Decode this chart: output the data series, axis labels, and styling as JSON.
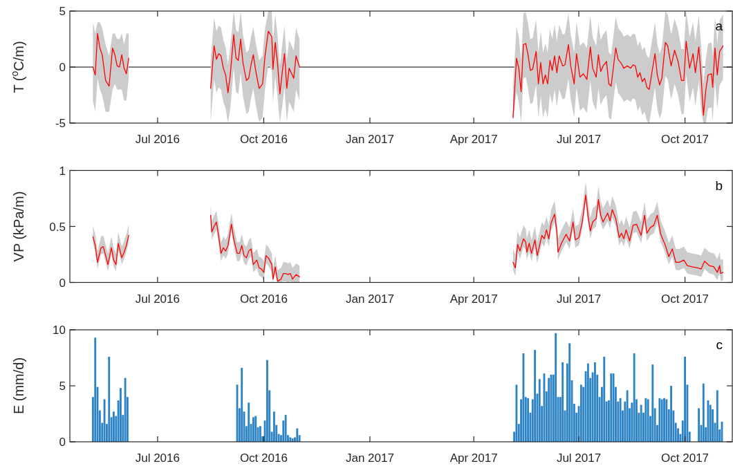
{
  "chart_data": [
    {
      "type": "line",
      "ylabel": "T ($^{o}$C/m)",
      "annotations": [
        "a"
      ],
      "xlim": [
        "2016-04-16",
        "2017-11-11"
      ],
      "xticks": [
        {
          "value": "2016-07-01",
          "label": "Jul 2016"
        },
        {
          "value": "2016-10-01",
          "label": "Oct 2016"
        },
        {
          "value": "2017-01-01",
          "label": "Jan 2017"
        },
        {
          "value": "2017-04-01",
          "label": "Apr 2017"
        },
        {
          "value": "2017-07-01",
          "label": "Jul 2017"
        },
        {
          "value": "2017-10-01",
          "label": "Oct 2017"
        }
      ],
      "ylim": [
        -5,
        5
      ],
      "yticks": [
        -5,
        0,
        5
      ],
      "ref_lines": [
        {
          "axis": "y",
          "value": 0,
          "color": "#000000"
        }
      ],
      "series": [
        {
          "color": "#ff0000",
          "x": [
            "2016-05-06",
            "2016-05-08",
            "2016-05-10",
            "2016-05-12",
            "2016-05-14",
            "2016-05-17",
            "2016-05-20",
            "2016-05-23",
            "2016-05-25",
            "2016-05-27",
            "2016-05-29",
            "2016-05-31",
            "2016-06-02",
            "2016-06-04",
            "2016-06-06",
            "2016-07-15",
            "2016-08-16",
            "2016-08-19",
            "2016-08-21",
            "2016-08-23",
            "2016-08-25",
            "2016-08-27",
            "2016-08-29",
            "2016-08-31",
            "2016-09-02",
            "2016-09-05",
            "2016-09-07",
            "2016-09-09",
            "2016-09-11",
            "2016-09-13",
            "2016-09-16",
            "2016-09-18",
            "2016-09-20",
            "2016-09-22",
            "2016-09-24",
            "2016-09-27",
            "2016-09-30",
            "2016-10-02",
            "2016-10-05",
            "2016-10-08",
            "2016-10-09",
            "2016-10-11",
            "2016-10-13",
            "2016-10-15",
            "2016-10-17",
            "2016-10-19",
            "2016-10-21",
            "2016-10-23",
            "2016-10-27",
            "2016-10-29",
            "2016-11-01",
            "2017-01-01",
            "2017-05-05",
            "2017-05-08",
            "2017-05-10",
            "2017-05-12",
            "2017-05-14",
            "2017-05-16",
            "2017-05-18",
            "2017-05-20",
            "2017-05-22",
            "2017-05-25",
            "2017-05-27",
            "2017-05-29",
            "2017-05-31",
            "2017-06-02",
            "2017-06-04",
            "2017-06-06",
            "2017-06-08",
            "2017-06-10",
            "2017-06-12",
            "2017-06-14",
            "2017-06-17",
            "2017-06-19",
            "2017-06-22",
            "2017-06-24",
            "2017-06-27",
            "2017-06-29",
            "2017-07-02",
            "2017-07-05",
            "2017-07-08",
            "2017-07-11",
            "2017-07-13",
            "2017-07-16",
            "2017-07-18",
            "2017-07-20",
            "2017-07-22",
            "2017-07-25",
            "2017-07-27",
            "2017-07-29",
            "2017-08-02",
            "2017-08-04",
            "2017-08-07",
            "2017-08-09",
            "2017-08-12",
            "2017-08-15",
            "2017-08-17",
            "2017-08-19",
            "2017-08-21",
            "2017-08-23",
            "2017-08-25",
            "2017-08-27",
            "2017-08-29",
            "2017-08-31",
            "2017-09-02",
            "2017-09-05",
            "2017-09-07",
            "2017-09-09",
            "2017-09-11",
            "2017-09-14",
            "2017-09-16",
            "2017-09-19",
            "2017-09-22",
            "2017-09-25",
            "2017-09-28",
            "2017-09-30",
            "2017-10-02",
            "2017-10-05",
            "2017-10-08",
            "2017-10-10",
            "2017-10-13",
            "2017-10-15",
            "2017-10-17",
            "2017-10-19",
            "2017-10-21",
            "2017-10-24",
            "2017-10-25",
            "2017-10-27",
            "2017-10-29",
            "2017-10-31",
            "2017-11-03"
          ],
          "values": [
            0,
            -0.7,
            3.0,
            1.7,
            1.1,
            -1.2,
            -1.7,
            1.7,
            1.1,
            0.1,
            0,
            1.1,
            -0.1,
            -0.6,
            0.8,
            null,
            -1.9,
            1.9,
            0.7,
            1.2,
            1.0,
            -0.1,
            -0.7,
            -2.3,
            -0.7,
            2.9,
            0.8,
            0.6,
            2.5,
            0.4,
            -1.2,
            -1.0,
            0.2,
            1.1,
            -0.3,
            -1.9,
            -1.5,
            0.9,
            3.2,
            2.7,
            -0.2,
            2.2,
            0.3,
            -2.4,
            -0.5,
            1.2,
            -1.9,
            -0.1,
            -1.0,
            1.0,
            0,
            null,
            -4.5,
            0.8,
            -0.1,
            -2.2,
            2.0,
            2.1,
            1.1,
            -0.3,
            -0.2,
            1.4,
            -1.5,
            0.4,
            -1.5,
            -0.7,
            -1.5,
            0.6,
            -0.3,
            1.0,
            -0.5,
            1.0,
            0.1,
            0.2,
            2.0,
            0.1,
            -1.5,
            1.2,
            -0.9,
            -0.6,
            -1.1,
            1.8,
            -0.1,
            -0.9,
            1.1,
            -0.4,
            0.1,
            0.5,
            -1.5,
            -1.7,
            1.7,
            0.7,
            0.3,
            -0.1,
            0.1,
            -0.1,
            0.2,
            0.1,
            -0.9,
            -0.5,
            -1.3,
            -1.0,
            -1.8,
            -2.0,
            -0.7,
            1.2,
            -0.7,
            -1.6,
            -1.0,
            2.2,
            1.9,
            0.1,
            1.5,
            0.5,
            -1.2,
            -1.2,
            2.3,
            -0.1,
            1.2,
            -0.5,
            1.8,
            -0.9,
            -4.3,
            -2.1,
            -0.7,
            -0.6,
            -1.8,
            1.7,
            -0.7,
            1.4,
            1.9
          ],
          "lower": [
            -3,
            -4,
            -1,
            -2,
            -2.5,
            -4,
            -4,
            -2,
            -1.5,
            -2,
            -2,
            -2,
            -3,
            -3,
            -1,
            null,
            -4.9,
            -1.1,
            -2.3,
            -1.8,
            -2,
            -3.1,
            -3.7,
            -5,
            -3.7,
            -0.1,
            -2.2,
            -2.4,
            -0.5,
            -2.6,
            -4.2,
            -4,
            -2.8,
            -1.9,
            -3.3,
            -4.9,
            -4.5,
            -2.1,
            0.2,
            -0.3,
            -3.2,
            -0.8,
            -2.7,
            -5,
            -3.5,
            -1.8,
            -4.9,
            -3.1,
            -4,
            -2,
            -3,
            null,
            -5,
            -2.2,
            -3.1,
            -5,
            -1,
            -0.9,
            -1.9,
            -3.3,
            -3.2,
            -1.6,
            -4.5,
            -2.6,
            -4.5,
            -3.7,
            -4.5,
            -2.4,
            -3.3,
            -2,
            -3.5,
            -2,
            -2.9,
            -2.8,
            -1,
            -2.9,
            -4.5,
            -1.8,
            -3.9,
            -3.6,
            -4.1,
            -1.2,
            -3.1,
            -3.9,
            -1.9,
            -3.4,
            -2.9,
            -2.5,
            -4.5,
            -4.7,
            -1.3,
            -2.3,
            -2.7,
            -3.1,
            -2.9,
            -3.1,
            -2.8,
            -2.9,
            -3.9,
            -3.5,
            -4.3,
            -4,
            -4.8,
            -5,
            -3.7,
            -1.8,
            -3.7,
            -4.6,
            -4,
            -0.8,
            -1.1,
            -2.9,
            -1.5,
            -2.5,
            -4.2,
            -4.2,
            -0.7,
            -3.1,
            -1.8,
            -3.5,
            -1.2,
            -3.9,
            -5,
            -5,
            -3.7,
            -3.6,
            -4.8,
            -1.3,
            -3.7,
            -1.6,
            -1.1
          ],
          "upper": [
            4,
            3,
            4,
            4,
            3.5,
            2,
            1,
            3,
            3,
            2.5,
            2.5,
            3,
            2,
            3,
            3,
            null,
            0.6,
            4.4,
            3.2,
            3.7,
            3.5,
            2.4,
            1.8,
            0.2,
            1.8,
            5,
            3.3,
            3.1,
            5,
            2.9,
            1.3,
            1.5,
            2.7,
            3.6,
            2.2,
            0.6,
            1,
            3.4,
            5,
            5,
            2.3,
            4.7,
            2.8,
            0.1,
            2,
            3.7,
            0.6,
            2.4,
            1.5,
            3.5,
            2.5,
            null,
            -1.7,
            3.6,
            2.7,
            0.6,
            4.8,
            4.9,
            3.9,
            2.5,
            2.6,
            4.2,
            1.3,
            3.2,
            1.3,
            2.1,
            1.3,
            3.4,
            2.5,
            3.8,
            2.3,
            3.8,
            2.9,
            3,
            4.8,
            2.9,
            1.3,
            4,
            1.9,
            2.2,
            1.7,
            4.6,
            2.7,
            1.9,
            3.9,
            2.4,
            2.9,
            3.3,
            1.3,
            1.1,
            4.5,
            3.5,
            3.1,
            2.7,
            2.9,
            2.7,
            3,
            2.9,
            1.9,
            2.3,
            1.5,
            1.8,
            1,
            0.8,
            2.1,
            4,
            2.1,
            1.2,
            1.8,
            5,
            4.7,
            2.9,
            4.3,
            3.3,
            1.6,
            1.6,
            5,
            2.7,
            4,
            2.3,
            4.6,
            1.9,
            -1.5,
            0.7,
            2.1,
            2.2,
            1,
            4.5,
            2.1,
            4.2,
            4.7
          ]
        }
      ]
    },
    {
      "type": "line",
      "ylabel": "VP (kPa/m)",
      "annotations": [
        "b"
      ],
      "xlim": [
        "2016-04-16",
        "2017-11-11"
      ],
      "xticks": [
        {
          "value": "2016-07-01",
          "label": "Jul 2016"
        },
        {
          "value": "2016-10-01",
          "label": "Oct 2016"
        },
        {
          "value": "2017-01-01",
          "label": "Jan 2017"
        },
        {
          "value": "2017-04-01",
          "label": "Apr 2017"
        },
        {
          "value": "2017-07-01",
          "label": "Jul 2017"
        },
        {
          "value": "2017-10-01",
          "label": "Oct 2017"
        }
      ],
      "ylim": [
        0,
        1
      ],
      "yticks": [
        0,
        0.5,
        1
      ],
      "series": [
        {
          "color": "#ff0000",
          "x": [
            "2016-05-06",
            "2016-05-08",
            "2016-05-10",
            "2016-05-13",
            "2016-05-15",
            "2016-05-17",
            "2016-05-19",
            "2016-05-22",
            "2016-05-24",
            "2016-05-26",
            "2016-05-28",
            "2016-05-31",
            "2016-06-02",
            "2016-06-04",
            "2016-06-06",
            "2016-07-15",
            "2016-08-16",
            "2016-08-17",
            "2016-08-19",
            "2016-08-21",
            "2016-08-23",
            "2016-08-25",
            "2016-08-27",
            "2016-08-29",
            "2016-08-31",
            "2016-09-03",
            "2016-09-05",
            "2016-09-08",
            "2016-09-10",
            "2016-09-12",
            "2016-09-14",
            "2016-09-16",
            "2016-09-18",
            "2016-09-20",
            "2016-09-22",
            "2016-09-25",
            "2016-09-27",
            "2016-09-29",
            "2016-10-01",
            "2016-10-03",
            "2016-10-05",
            "2016-10-08",
            "2016-10-09",
            "2016-10-11",
            "2016-10-13",
            "2016-10-16",
            "2016-10-18",
            "2016-10-20",
            "2016-10-22",
            "2016-10-24",
            "2016-10-26",
            "2016-10-29",
            "2016-11-01",
            "2017-01-01",
            "2017-05-05",
            "2017-05-07",
            "2017-05-09",
            "2017-05-11",
            "2017-05-14",
            "2017-05-16",
            "2017-05-17",
            "2017-05-19",
            "2017-05-21",
            "2017-05-24",
            "2017-05-26",
            "2017-05-30",
            "2017-06-01",
            "2017-06-03",
            "2017-06-05",
            "2017-06-07",
            "2017-06-10",
            "2017-06-12",
            "2017-06-13",
            "2017-06-16",
            "2017-06-20",
            "2017-06-23",
            "2017-06-26",
            "2017-06-28",
            "2017-07-01",
            "2017-07-04",
            "2017-07-07",
            "2017-07-09",
            "2017-07-11",
            "2017-07-13",
            "2017-07-16",
            "2017-07-18",
            "2017-07-20",
            "2017-07-22",
            "2017-07-26",
            "2017-07-28",
            "2017-07-30",
            "2017-08-02",
            "2017-08-05",
            "2017-08-07",
            "2017-08-09",
            "2017-08-11",
            "2017-08-14",
            "2017-08-17",
            "2017-08-20",
            "2017-08-24",
            "2017-08-27",
            "2017-08-29",
            "2017-09-01",
            "2017-09-04",
            "2017-09-07",
            "2017-09-10",
            "2017-09-14",
            "2017-09-17",
            "2017-09-20",
            "2017-09-23",
            "2017-09-26",
            "2017-09-30",
            "2017-10-03",
            "2017-10-07",
            "2017-10-12",
            "2017-10-15",
            "2017-10-18",
            "2017-10-22",
            "2017-10-26",
            "2017-10-29",
            "2017-10-31",
            "2017-11-01",
            "2017-11-03"
          ],
          "values": [
            0.41,
            0.33,
            0.18,
            0.31,
            0.32,
            0.24,
            0.16,
            0.31,
            0.2,
            0.16,
            0.35,
            0.22,
            0.27,
            0.33,
            0.42,
            null,
            0.6,
            0.45,
            0.5,
            0.54,
            0.41,
            0.26,
            0.31,
            0.28,
            0.33,
            0.52,
            0.39,
            0.26,
            0.26,
            0.33,
            0.24,
            0.22,
            0.28,
            0.3,
            0.16,
            0.2,
            0.13,
            0.12,
            0.09,
            0.24,
            0.22,
            0.16,
            0.03,
            0.14,
            0.01,
            0.03,
            0.08,
            0.08,
            0.07,
            0.08,
            0.03,
            0.07,
            0.05,
            null,
            0.18,
            0.13,
            0.34,
            0.28,
            0.39,
            0.36,
            0.27,
            0.35,
            0.26,
            0.38,
            0.24,
            0.42,
            0.39,
            0.47,
            0.39,
            0.53,
            0.61,
            0.45,
            0.27,
            0.35,
            0.43,
            0.37,
            0.54,
            0.38,
            0.4,
            0.54,
            0.78,
            0.59,
            0.46,
            0.54,
            0.57,
            0.74,
            0.6,
            0.54,
            0.62,
            0.55,
            0.65,
            0.57,
            0.4,
            0.44,
            0.39,
            0.47,
            0.37,
            0.51,
            0.52,
            0.42,
            0.6,
            0.44,
            0.49,
            0.51,
            0.6,
            0.43,
            0.33,
            0.23,
            0.3,
            0.18,
            0.18,
            0.2,
            0.15,
            0.14,
            0.13,
            0.12,
            0.19,
            0.15,
            0.14,
            0.09,
            0.15,
            0.08,
            0.09
          ],
          "lower": [
            0.35,
            0.27,
            0.12,
            0.25,
            0.26,
            0.18,
            0.1,
            0.25,
            0.14,
            0.1,
            0.29,
            0.16,
            0.21,
            0.27,
            0.36,
            null,
            0.53,
            0.38,
            0.43,
            0.47,
            0.34,
            0.19,
            0.24,
            0.21,
            0.26,
            0.45,
            0.32,
            0.19,
            0.19,
            0.26,
            0.17,
            0.15,
            0.21,
            0.23,
            0.09,
            0.13,
            0.06,
            0.05,
            0.02,
            0.17,
            0.15,
            0.09,
            0,
            0.07,
            0,
            0,
            0.01,
            0.01,
            0,
            0.01,
            0,
            0,
            0,
            null,
            0.11,
            0.06,
            0.27,
            0.21,
            0.32,
            0.29,
            0.2,
            0.28,
            0.19,
            0.31,
            0.17,
            0.35,
            0.32,
            0.4,
            0.32,
            0.46,
            0.54,
            0.38,
            0.2,
            0.28,
            0.36,
            0.3,
            0.47,
            0.31,
            0.33,
            0.47,
            0.71,
            0.52,
            0.39,
            0.47,
            0.5,
            0.67,
            0.53,
            0.47,
            0.55,
            0.48,
            0.58,
            0.5,
            0.33,
            0.37,
            0.32,
            0.4,
            0.3,
            0.44,
            0.45,
            0.35,
            0.53,
            0.37,
            0.42,
            0.44,
            0.53,
            0.36,
            0.26,
            0.16,
            0.23,
            0.11,
            0.11,
            0.13,
            0.08,
            0.07,
            0.06,
            0.05,
            0.12,
            0.08,
            0.07,
            0.02,
            0.08,
            0.01,
            0.02
          ],
          "upper": [
            0.51,
            0.43,
            0.28,
            0.41,
            0.42,
            0.34,
            0.26,
            0.41,
            0.3,
            0.26,
            0.45,
            0.32,
            0.37,
            0.43,
            0.52,
            null,
            0.7,
            0.55,
            0.6,
            0.64,
            0.51,
            0.36,
            0.41,
            0.38,
            0.43,
            0.62,
            0.49,
            0.36,
            0.36,
            0.43,
            0.34,
            0.32,
            0.38,
            0.4,
            0.26,
            0.3,
            0.23,
            0.22,
            0.19,
            0.34,
            0.32,
            0.26,
            0.13,
            0.24,
            0.11,
            0.13,
            0.18,
            0.18,
            0.17,
            0.18,
            0.13,
            0.17,
            0.15,
            null,
            0.3,
            0.25,
            0.46,
            0.4,
            0.51,
            0.48,
            0.39,
            0.47,
            0.38,
            0.5,
            0.36,
            0.54,
            0.51,
            0.59,
            0.51,
            0.65,
            0.73,
            0.57,
            0.39,
            0.47,
            0.55,
            0.49,
            0.66,
            0.5,
            0.52,
            0.66,
            0.9,
            0.71,
            0.58,
            0.66,
            0.69,
            0.86,
            0.72,
            0.66,
            0.74,
            0.67,
            0.77,
            0.69,
            0.52,
            0.56,
            0.51,
            0.59,
            0.49,
            0.63,
            0.64,
            0.54,
            0.72,
            0.56,
            0.61,
            0.63,
            0.72,
            0.55,
            0.45,
            0.35,
            0.42,
            0.3,
            0.3,
            0.32,
            0.27,
            0.26,
            0.25,
            0.24,
            0.31,
            0.27,
            0.26,
            0.21,
            0.27,
            0.2,
            0.21
          ]
        }
      ]
    },
    {
      "type": "bar",
      "ylabel": "E (mm/d)",
      "annotations": [
        "c"
      ],
      "xlim": [
        "2016-04-16",
        "2017-11-11"
      ],
      "xticks": [
        {
          "value": "2016-07-01",
          "label": "Jul 2016"
        },
        {
          "value": "2016-10-01",
          "label": "Oct 2016"
        },
        {
          "value": "2017-01-01",
          "label": "Jan 2017"
        },
        {
          "value": "2017-04-01",
          "label": "Apr 2017"
        },
        {
          "value": "2017-07-01",
          "label": "Jul 2017"
        },
        {
          "value": "2017-10-01",
          "label": "Oct 2017"
        }
      ],
      "ylim": [
        0,
        10
      ],
      "yticks": [
        0,
        5,
        10
      ],
      "series": [
        {
          "color": "#2b83c6",
          "x": [
            "2016-05-06",
            "2016-05-08",
            "2016-05-10",
            "2016-05-12",
            "2016-05-14",
            "2016-05-16",
            "2016-05-18",
            "2016-05-20",
            "2016-05-22",
            "2016-05-24",
            "2016-05-26",
            "2016-05-28",
            "2016-05-30",
            "2016-06-01",
            "2016-06-03",
            "2016-06-05",
            "2016-09-08",
            "2016-09-10",
            "2016-09-12",
            "2016-09-14",
            "2016-09-16",
            "2016-09-18",
            "2016-09-20",
            "2016-09-22",
            "2016-09-24",
            "2016-09-26",
            "2016-09-28",
            "2016-09-30",
            "2016-10-02",
            "2016-10-04",
            "2016-10-06",
            "2016-10-08",
            "2016-10-10",
            "2016-10-12",
            "2016-10-14",
            "2016-10-16",
            "2016-10-18",
            "2016-10-20",
            "2016-10-22",
            "2016-10-24",
            "2016-10-26",
            "2016-10-28",
            "2016-10-30",
            "2016-11-01",
            "2017-05-06",
            "2017-05-08",
            "2017-05-10",
            "2017-05-12",
            "2017-05-14",
            "2017-05-16",
            "2017-05-18",
            "2017-05-20",
            "2017-05-22",
            "2017-05-24",
            "2017-05-26",
            "2017-05-28",
            "2017-05-30",
            "2017-06-01",
            "2017-06-03",
            "2017-06-05",
            "2017-06-07",
            "2017-06-09",
            "2017-06-11",
            "2017-06-13",
            "2017-06-15",
            "2017-06-17",
            "2017-06-19",
            "2017-06-21",
            "2017-06-23",
            "2017-06-25",
            "2017-06-27",
            "2017-06-29",
            "2017-07-01",
            "2017-07-03",
            "2017-07-05",
            "2017-07-07",
            "2017-07-09",
            "2017-07-11",
            "2017-07-13",
            "2017-07-15",
            "2017-07-17",
            "2017-07-19",
            "2017-07-21",
            "2017-07-23",
            "2017-07-25",
            "2017-07-27",
            "2017-07-29",
            "2017-07-31",
            "2017-08-02",
            "2017-08-04",
            "2017-08-06",
            "2017-08-08",
            "2017-08-10",
            "2017-08-12",
            "2017-08-14",
            "2017-08-16",
            "2017-08-18",
            "2017-08-20",
            "2017-08-22",
            "2017-08-24",
            "2017-08-26",
            "2017-08-28",
            "2017-08-30",
            "2017-09-01",
            "2017-09-03",
            "2017-09-05",
            "2017-09-07",
            "2017-09-09",
            "2017-09-11",
            "2017-09-13",
            "2017-09-15",
            "2017-09-17",
            "2017-09-19",
            "2017-09-21",
            "2017-09-23",
            "2017-09-25",
            "2017-09-27",
            "2017-09-29",
            "2017-10-01",
            "2017-10-03",
            "2017-10-05",
            "2017-10-13",
            "2017-10-15",
            "2017-10-17",
            "2017-10-19",
            "2017-10-21",
            "2017-10-23",
            "2017-10-25",
            "2017-10-27",
            "2017-10-29",
            "2017-10-31",
            "2017-11-02"
          ],
          "values": [
            4.0,
            9.3,
            4.9,
            2.8,
            1.7,
            3.8,
            1.6,
            7.6,
            2.2,
            2.7,
            2.3,
            3.7,
            4.8,
            2.4,
            5.7,
            4.0,
            5.1,
            3.0,
            6.6,
            2.7,
            1.4,
            3.5,
            1.6,
            2.2,
            2.3,
            1.3,
            1.4,
            0.5,
            1.9,
            7.3,
            4.6,
            0.9,
            2.7,
            1.5,
            0.7,
            0.6,
            1.9,
            2.4,
            0.6,
            0.4,
            0.3,
            0.4,
            1.2,
            0.6,
            0.9,
            5.1,
            1.6,
            3.8,
            7.9,
            4.0,
            3.9,
            2.6,
            3.8,
            8.2,
            4.3,
            5.6,
            3.2,
            6.1,
            4.5,
            5.7,
            6.0,
            6.0,
            9.7,
            4.0,
            4.0,
            7.1,
            2.8,
            7.0,
            8.8,
            5.5,
            3.4,
            2.6,
            3.2,
            5.1,
            4.9,
            6.3,
            7.0,
            5.7,
            6.2,
            7.1,
            6.0,
            4.0,
            4.9,
            7.6,
            3.6,
            3.7,
            6.1,
            6.1,
            4.9,
            3.6,
            3.9,
            2.8,
            3.6,
            4.6,
            3.0,
            3.5,
            7.9,
            3.8,
            2.6,
            3.3,
            2.6,
            3.9,
            3.8,
            2.3,
            6.9,
            3.0,
            1.5,
            3.9,
            3.8,
            3.9,
            3.8,
            2.9,
            5.0,
            2.8,
            1.7,
            1.2,
            0.7,
            1.9,
            7.6,
            5.1,
            0.9,
            3.0,
            1.5,
            5.2,
            1.3,
            3.7,
            3.3,
            2.9,
            1.7,
            4.6,
            1.1,
            1.8
          ]
        }
      ]
    }
  ]
}
